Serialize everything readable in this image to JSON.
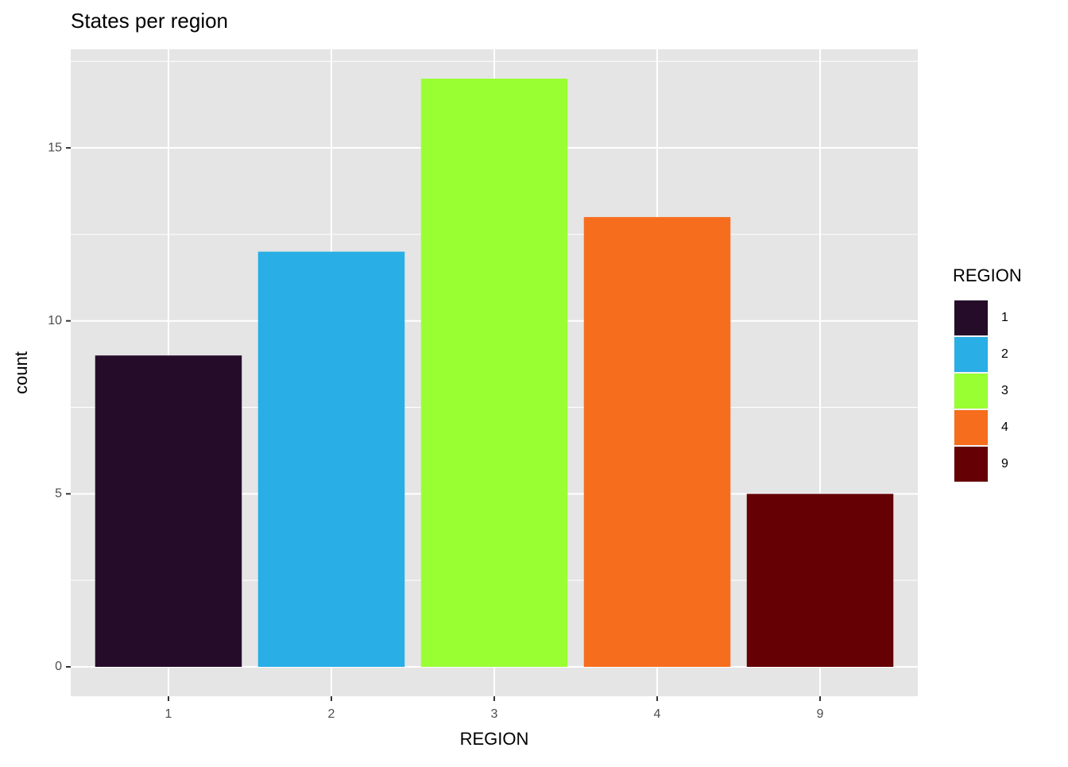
{
  "chart_data": {
    "type": "bar",
    "title": "States per region",
    "categories": [
      "1",
      "2",
      "3",
      "4",
      "9"
    ],
    "values": [
      9,
      12,
      17,
      13,
      5
    ],
    "colors": [
      "#250d29",
      "#29aee6",
      "#99ff33",
      "#f76d1e",
      "#650005"
    ],
    "x_label": "REGION",
    "y_label": "count",
    "ylim": [
      -0.85,
      17.85
    ],
    "yticks": [
      0,
      5,
      10,
      15
    ],
    "y_minor_ticks": [
      2.5,
      7.5,
      12.5,
      17.5
    ],
    "grid": true,
    "legend_title": "REGION",
    "legend_position": "right"
  }
}
